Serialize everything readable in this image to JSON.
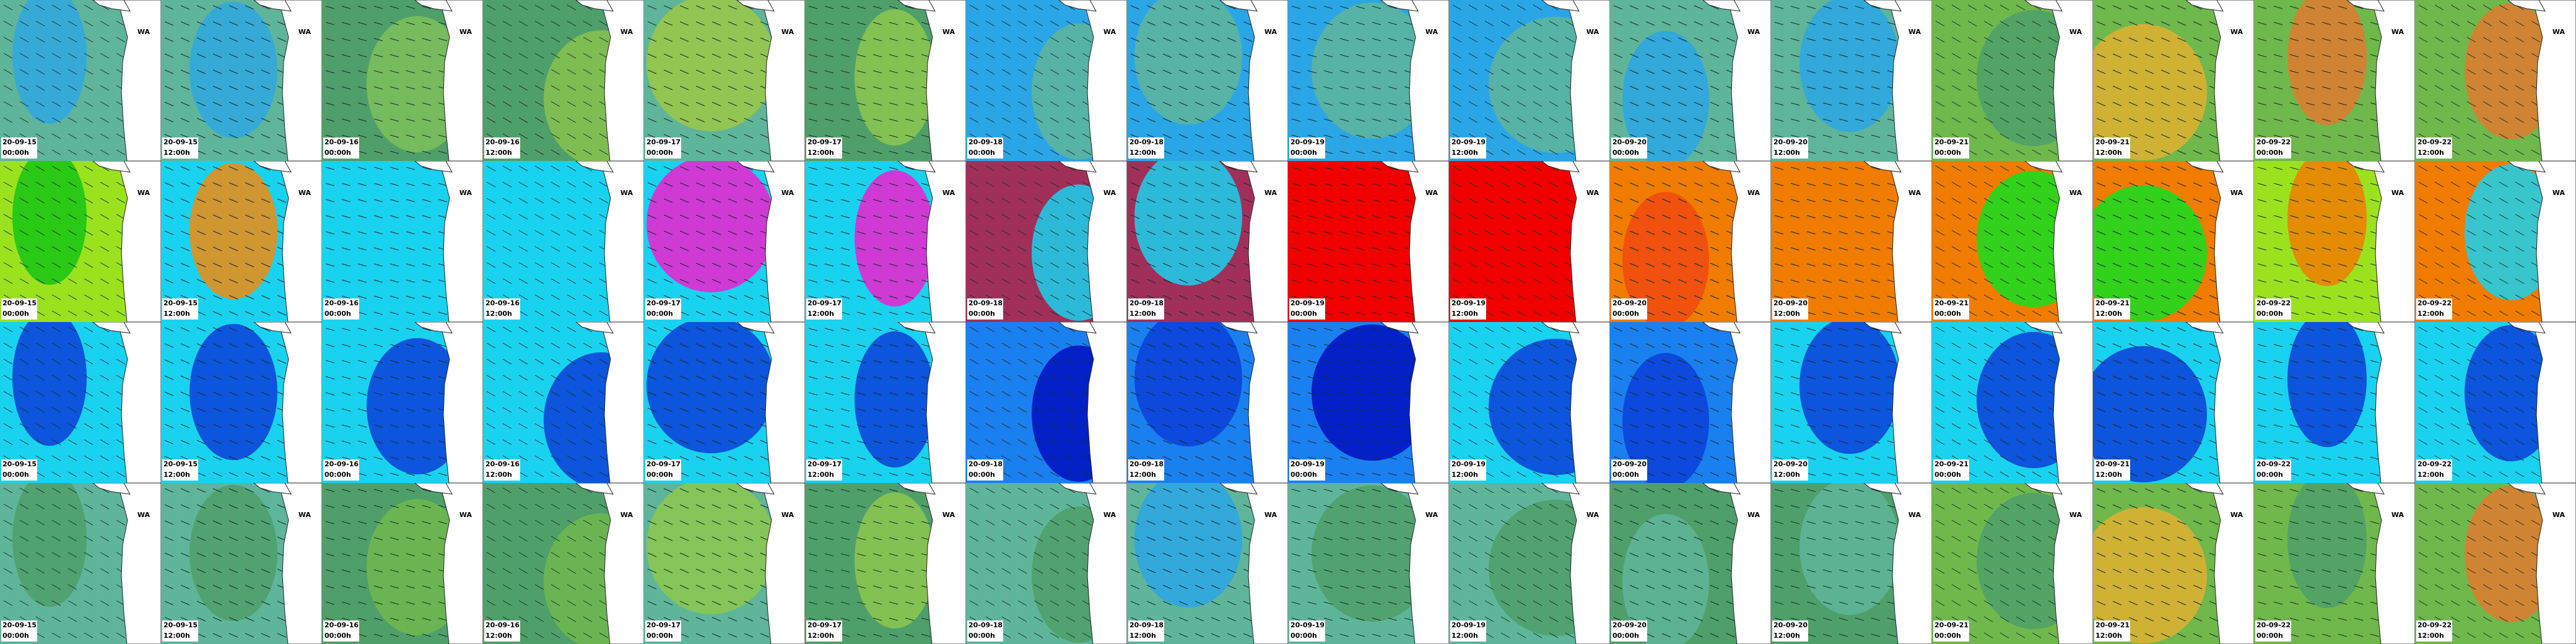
{
  "map_label": "WA",
  "columns": [
    {
      "date": "20-09-15",
      "time": "00:00h"
    },
    {
      "date": "20-09-15",
      "time": "12:00h"
    },
    {
      "date": "20-09-16",
      "time": "00:00h"
    },
    {
      "date": "20-09-16",
      "time": "12:00h"
    },
    {
      "date": "20-09-17",
      "time": "00:00h"
    },
    {
      "date": "20-09-17",
      "time": "12:00h"
    },
    {
      "date": "20-09-18",
      "time": "00:00h"
    },
    {
      "date": "20-09-18",
      "time": "12:00h"
    },
    {
      "date": "20-09-19",
      "time": "00:00h"
    },
    {
      "date": "20-09-19",
      "time": "12:00h"
    },
    {
      "date": "20-09-20",
      "time": "00:00h"
    },
    {
      "date": "20-09-20",
      "time": "12:00h"
    },
    {
      "date": "20-09-21",
      "time": "00:00h"
    },
    {
      "date": "20-09-21",
      "time": "12:00h"
    },
    {
      "date": "20-09-22",
      "time": "00:00h"
    },
    {
      "date": "20-09-22",
      "time": "12:00h"
    }
  ]
}
